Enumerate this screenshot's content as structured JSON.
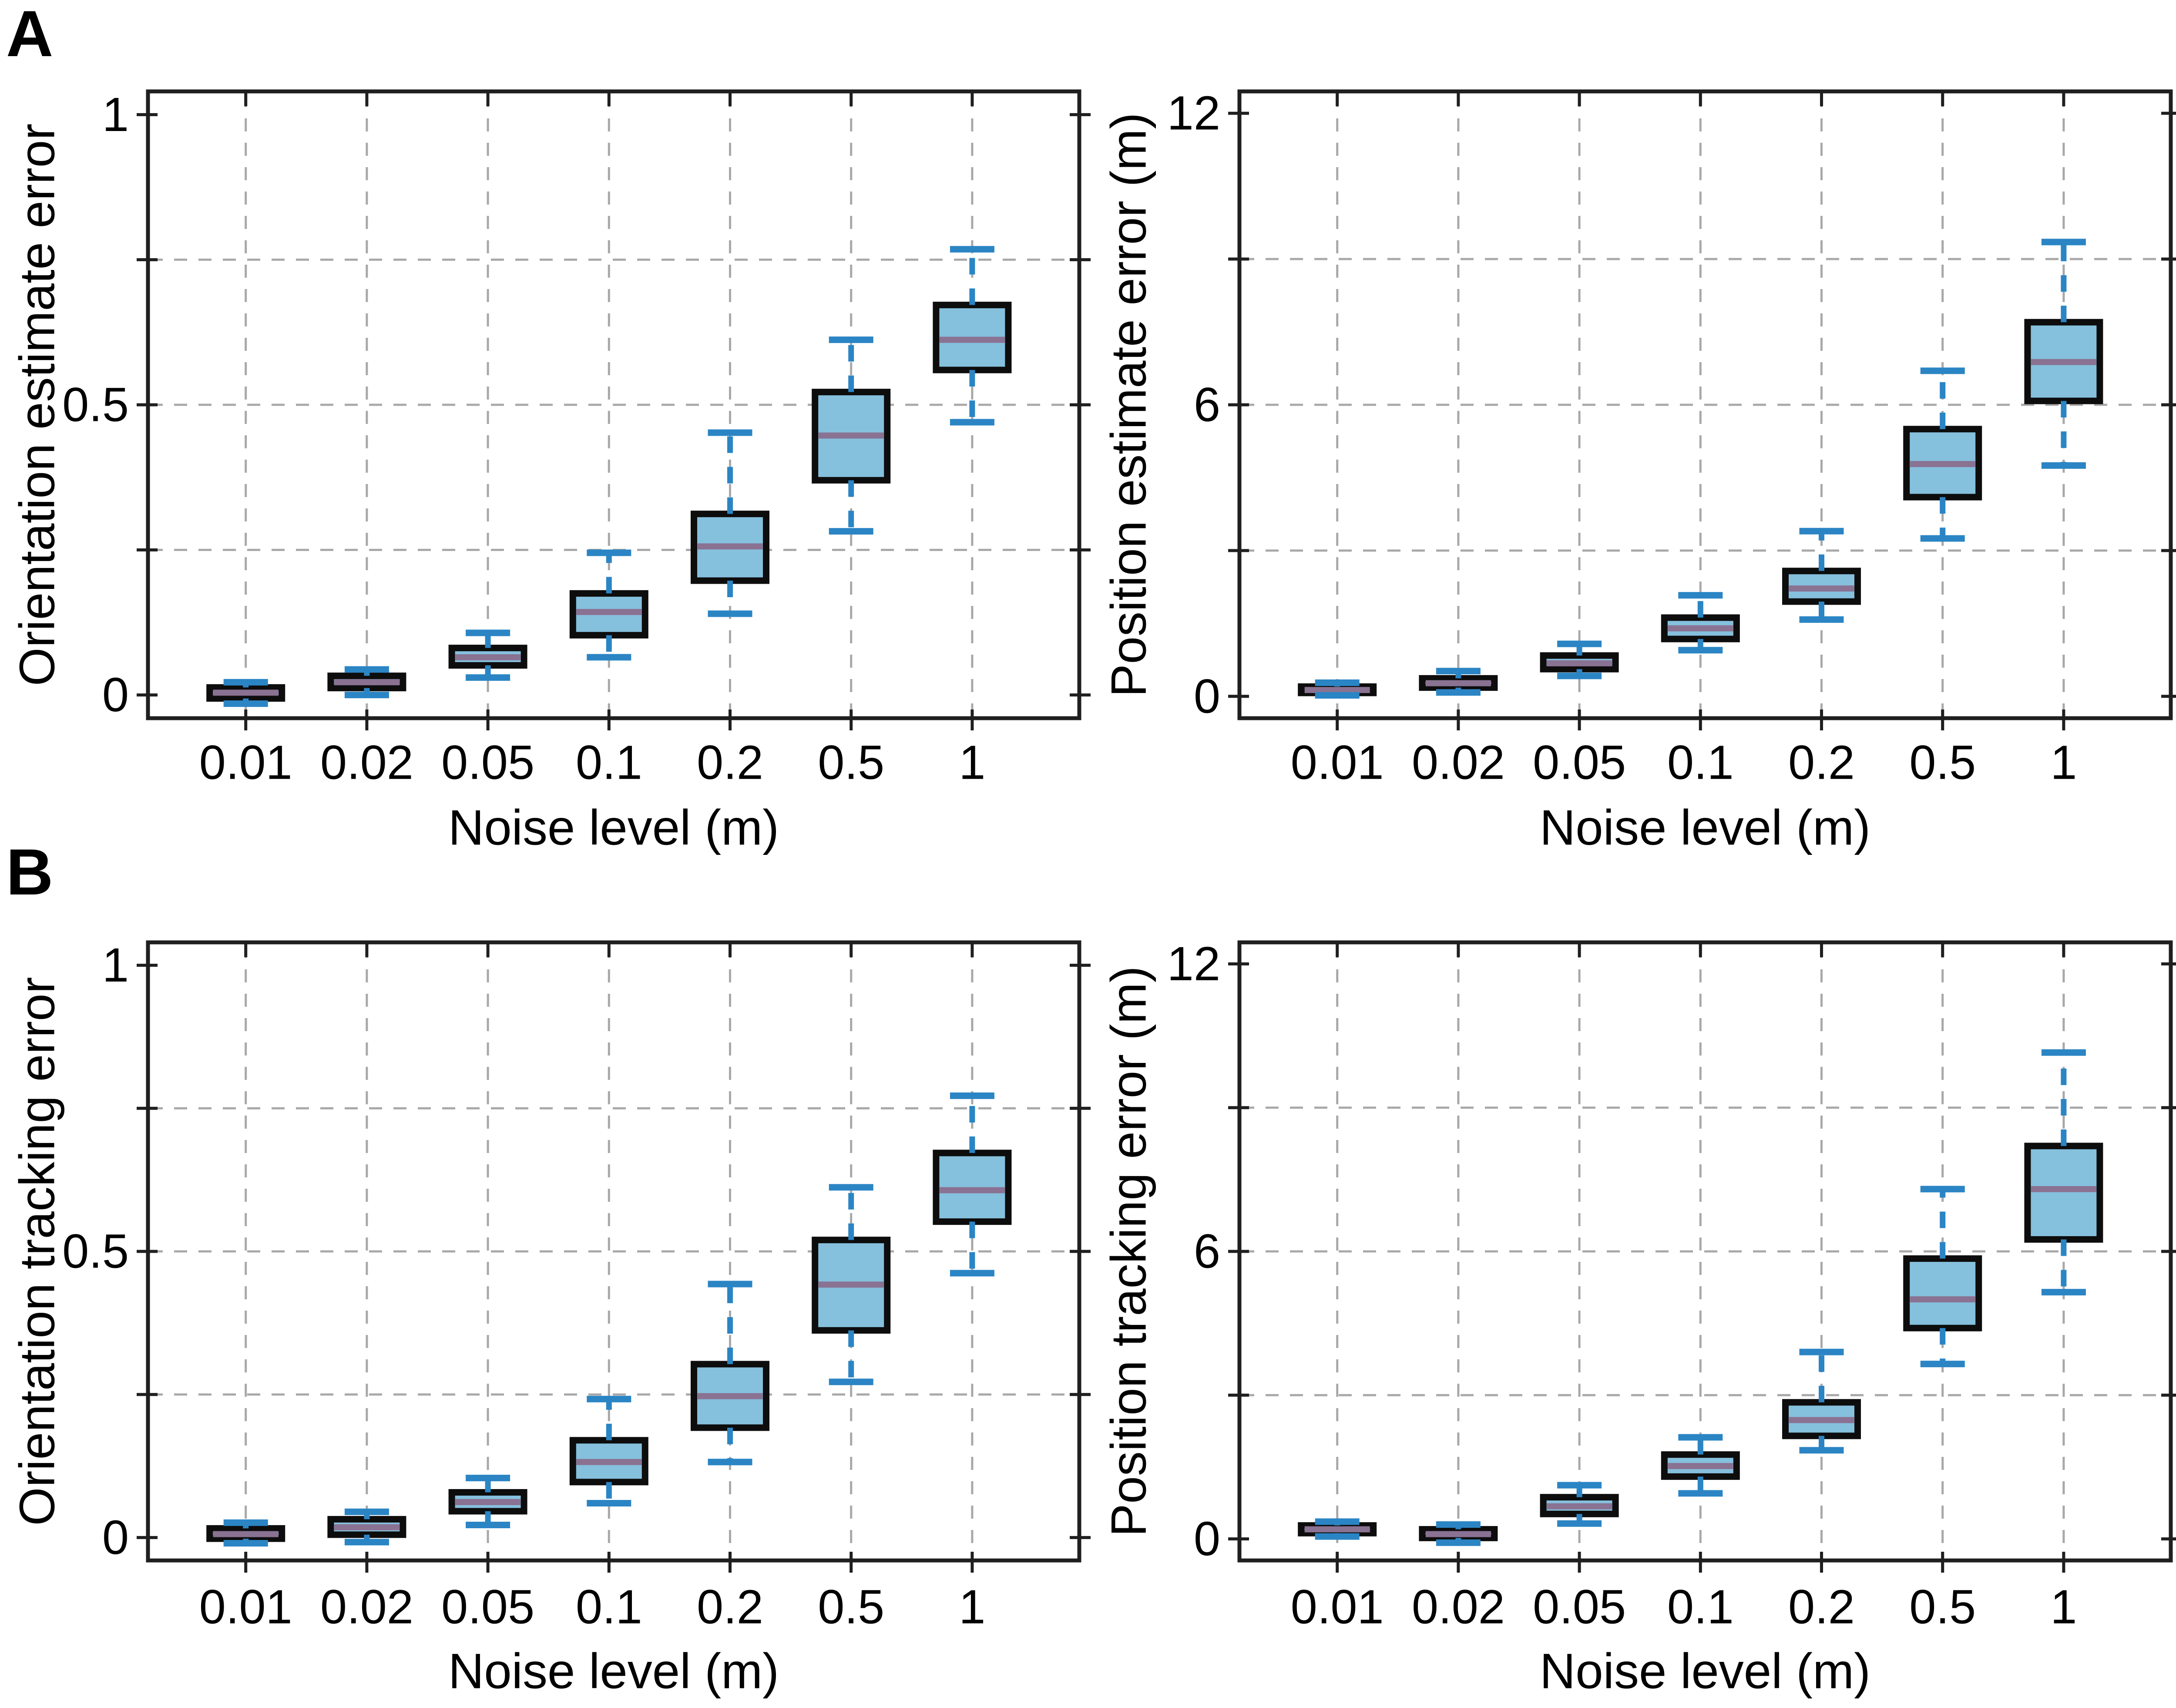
{
  "figure": {
    "panel_labels": [
      "A",
      "B"
    ]
  },
  "colors": {
    "background": "#FFFFFF",
    "box_fill": "#85C0DD",
    "box_edge": "#0D0D0D",
    "median": "#8A7292",
    "whisker": "#2B85C4",
    "grid": "#A8A8A8",
    "frame": "#1F1F1F",
    "text": "#000000"
  },
  "chart_data": [
    {
      "type": "box",
      "panel": "A",
      "xlabel": "Noise level (m)",
      "ylabel": "Orientation estimate error",
      "categories": [
        "0.01",
        "0.02",
        "0.05",
        "0.1",
        "0.2",
        "0.5",
        "1"
      ],
      "x_values": [
        0.01,
        0.02,
        0.05,
        0.1,
        0.2,
        0.5,
        1
      ],
      "ylim": [
        -0.04,
        1.04
      ],
      "yticks": [
        {
          "value": 0,
          "label": "0"
        },
        {
          "value": 0.5,
          "label": "0.5"
        },
        {
          "value": 1,
          "label": "1"
        }
      ],
      "grid_y": [
        0.25,
        0.5,
        0.75
      ],
      "grid": true,
      "legend": false,
      "boxes": [
        {
          "whislo": -0.015,
          "q1": -0.006,
          "med": 0.004,
          "q3": 0.013,
          "whishi": 0.022
        },
        {
          "whislo": 0.0,
          "q1": 0.012,
          "med": 0.022,
          "q3": 0.033,
          "whishi": 0.044
        },
        {
          "whislo": 0.03,
          "q1": 0.051,
          "med": 0.065,
          "q3": 0.081,
          "whishi": 0.107
        },
        {
          "whislo": 0.065,
          "q1": 0.103,
          "med": 0.143,
          "q3": 0.175,
          "whishi": 0.245
        },
        {
          "whislo": 0.14,
          "q1": 0.197,
          "med": 0.256,
          "q3": 0.312,
          "whishi": 0.452
        },
        {
          "whislo": 0.282,
          "q1": 0.37,
          "med": 0.447,
          "q3": 0.522,
          "whishi": 0.612
        },
        {
          "whislo": 0.47,
          "q1": 0.56,
          "med": 0.612,
          "q3": 0.672,
          "whishi": 0.768
        }
      ]
    },
    {
      "type": "box",
      "panel": "A",
      "xlabel": "Noise level (m)",
      "ylabel": "Position estimate error (m)",
      "categories": [
        "0.01",
        "0.02",
        "0.05",
        "0.1",
        "0.2",
        "0.5",
        "1"
      ],
      "x_values": [
        0.01,
        0.02,
        0.05,
        0.1,
        0.2,
        0.5,
        1
      ],
      "ylim": [
        -0.45,
        12.45
      ],
      "yticks": [
        {
          "value": 0,
          "label": "0"
        },
        {
          "value": 6,
          "label": "6"
        },
        {
          "value": 12,
          "label": "12"
        }
      ],
      "grid_y": [
        3,
        6,
        9
      ],
      "grid": true,
      "legend": false,
      "boxes": [
        {
          "whislo": 0.02,
          "q1": 0.07,
          "med": 0.13,
          "q3": 0.2,
          "whishi": 0.28
        },
        {
          "whislo": 0.08,
          "q1": 0.18,
          "med": 0.27,
          "q3": 0.37,
          "whishi": 0.52
        },
        {
          "whislo": 0.42,
          "q1": 0.56,
          "med": 0.68,
          "q3": 0.84,
          "whishi": 1.08
        },
        {
          "whislo": 0.95,
          "q1": 1.18,
          "med": 1.4,
          "q3": 1.62,
          "whishi": 2.08
        },
        {
          "whislo": 1.58,
          "q1": 1.95,
          "med": 2.22,
          "q3": 2.58,
          "whishi": 3.4
        },
        {
          "whislo": 3.25,
          "q1": 4.1,
          "med": 4.78,
          "q3": 5.5,
          "whishi": 6.7
        },
        {
          "whislo": 4.75,
          "q1": 6.08,
          "med": 6.88,
          "q3": 7.7,
          "whishi": 9.35
        }
      ]
    },
    {
      "type": "box",
      "panel": "B",
      "xlabel": "Noise level (m)",
      "ylabel": "Orientation tracking error",
      "categories": [
        "0.01",
        "0.02",
        "0.05",
        "0.1",
        "0.2",
        "0.5",
        "1"
      ],
      "x_values": [
        0.01,
        0.02,
        0.05,
        0.1,
        0.2,
        0.5,
        1
      ],
      "ylim": [
        -0.04,
        1.04
      ],
      "yticks": [
        {
          "value": 0,
          "label": "0"
        },
        {
          "value": 0.5,
          "label": "0.5"
        },
        {
          "value": 1,
          "label": "1"
        }
      ],
      "grid_y": [
        0.25,
        0.5,
        0.75
      ],
      "grid": true,
      "legend": false,
      "boxes": [
        {
          "whislo": -0.01,
          "q1": -0.002,
          "med": 0.006,
          "q3": 0.016,
          "whishi": 0.026
        },
        {
          "whislo": -0.008,
          "q1": 0.005,
          "med": 0.018,
          "q3": 0.032,
          "whishi": 0.045
        },
        {
          "whislo": 0.022,
          "q1": 0.046,
          "med": 0.062,
          "q3": 0.079,
          "whishi": 0.104
        },
        {
          "whislo": 0.06,
          "q1": 0.097,
          "med": 0.132,
          "q3": 0.17,
          "whishi": 0.242
        },
        {
          "whislo": 0.132,
          "q1": 0.192,
          "med": 0.247,
          "q3": 0.303,
          "whishi": 0.443
        },
        {
          "whislo": 0.272,
          "q1": 0.362,
          "med": 0.442,
          "q3": 0.52,
          "whishi": 0.612
        },
        {
          "whislo": 0.462,
          "q1": 0.552,
          "med": 0.607,
          "q3": 0.672,
          "whishi": 0.772
        }
      ]
    },
    {
      "type": "box",
      "panel": "B",
      "xlabel": "Noise level (m)",
      "ylabel": "Position tracking error (m)",
      "categories": [
        "0.01",
        "0.02",
        "0.05",
        "0.1",
        "0.2",
        "0.5",
        "1"
      ],
      "x_values": [
        0.01,
        0.02,
        0.05,
        0.1,
        0.2,
        0.5,
        1
      ],
      "ylim": [
        -0.45,
        12.45
      ],
      "yticks": [
        {
          "value": 0,
          "label": "0"
        },
        {
          "value": 6,
          "label": "6"
        },
        {
          "value": 12,
          "label": "12"
        }
      ],
      "grid_y": [
        3,
        6,
        9
      ],
      "grid": true,
      "legend": false,
      "boxes": [
        {
          "whislo": 0.05,
          "q1": 0.12,
          "med": 0.2,
          "q3": 0.28,
          "whishi": 0.36
        },
        {
          "whislo": -0.08,
          "q1": 0.02,
          "med": 0.1,
          "q3": 0.2,
          "whishi": 0.3
        },
        {
          "whislo": 0.32,
          "q1": 0.52,
          "med": 0.68,
          "q3": 0.87,
          "whishi": 1.12
        },
        {
          "whislo": 0.95,
          "q1": 1.3,
          "med": 1.52,
          "q3": 1.76,
          "whishi": 2.12
        },
        {
          "whislo": 1.85,
          "q1": 2.15,
          "med": 2.48,
          "q3": 2.85,
          "whishi": 3.9
        },
        {
          "whislo": 3.65,
          "q1": 4.4,
          "med": 5.0,
          "q3": 5.85,
          "whishi": 7.3
        },
        {
          "whislo": 5.15,
          "q1": 6.25,
          "med": 7.3,
          "q3": 8.2,
          "whishi": 10.15
        }
      ]
    }
  ]
}
